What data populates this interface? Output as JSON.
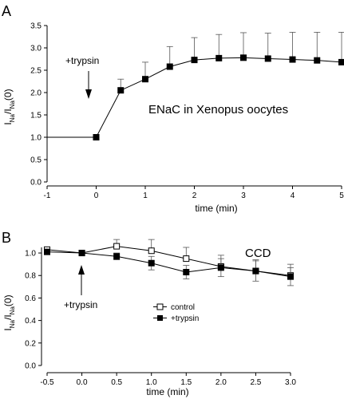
{
  "chart_data": [
    {
      "panel": "A",
      "type": "line",
      "title": "",
      "annotation": "ENaC in Xenopus oocytes",
      "marker_label": "+trypsin",
      "marker_x": 0,
      "xlabel": "time (min)",
      "ylabel_main": "I",
      "ylabel_sub1": "Na",
      "ylabel_sep": "/I",
      "ylabel_sub2": "Na",
      "ylabel_tail": "(0)",
      "xlim": [
        -1,
        5
      ],
      "ylim": [
        0,
        3.5
      ],
      "xticks": [
        "-1",
        "0",
        "1",
        "2",
        "3",
        "4",
        "5"
      ],
      "yticks": [
        "0.0",
        "0.5",
        "1.0",
        "1.5",
        "2.0",
        "2.5",
        "3.0",
        "3.5"
      ],
      "baseline": {
        "x": [
          -1,
          0
        ],
        "y": [
          1.0,
          1.0
        ]
      },
      "series": [
        {
          "marker": "filled-square",
          "x": [
            0,
            0.5,
            1,
            1.5,
            2,
            2.5,
            3,
            3.5,
            4,
            4.5,
            5
          ],
          "y": [
            1.0,
            2.05,
            2.3,
            2.58,
            2.73,
            2.77,
            2.78,
            2.76,
            2.74,
            2.72,
            2.68
          ],
          "err": [
            0,
            0.25,
            0.38,
            0.45,
            0.5,
            0.53,
            0.56,
            0.57,
            0.61,
            0.63,
            0.67
          ]
        }
      ]
    },
    {
      "panel": "B",
      "type": "line",
      "title": "",
      "annotation": "CCD",
      "marker_label": "+trypsin",
      "marker_x": 0,
      "xlabel": "time (min)",
      "ylabel_main": "I",
      "ylabel_sub1": "Na",
      "ylabel_sep": "/I",
      "ylabel_sub2": "Na",
      "ylabel_tail": "(0)",
      "xlim": [
        -0.5,
        3.0
      ],
      "ylim": [
        0,
        1.05
      ],
      "xticks": [
        "-0.5",
        "0.0",
        "0.5",
        "1.0",
        "1.5",
        "2.0",
        "2.5",
        "3.0"
      ],
      "yticks": [
        "0.0",
        "0.2",
        "0.4",
        "0.6",
        "0.8",
        "1.0"
      ],
      "legend_position": "center-right",
      "series": [
        {
          "name": "control",
          "marker": "open-square",
          "x": [
            -0.5,
            0,
            0.5,
            1.0,
            1.5,
            2.0,
            2.5,
            3.0
          ],
          "y": [
            1.03,
            1.0,
            1.06,
            1.02,
            0.95,
            0.88,
            0.84,
            0.8
          ],
          "err": [
            0.02,
            0.0,
            0.06,
            0.1,
            0.1,
            0.1,
            0.1,
            0.1
          ]
        },
        {
          "name": "+trypsin",
          "marker": "filled-square",
          "x": [
            -0.5,
            0,
            0.5,
            1.0,
            1.5,
            2.0,
            2.5,
            3.0
          ],
          "y": [
            1.01,
            1.0,
            0.97,
            0.91,
            0.83,
            0.87,
            0.84,
            0.79
          ],
          "err": [
            0.0,
            0.0,
            0.03,
            0.06,
            0.06,
            0.08,
            0.09,
            0.08
          ]
        }
      ]
    }
  ]
}
